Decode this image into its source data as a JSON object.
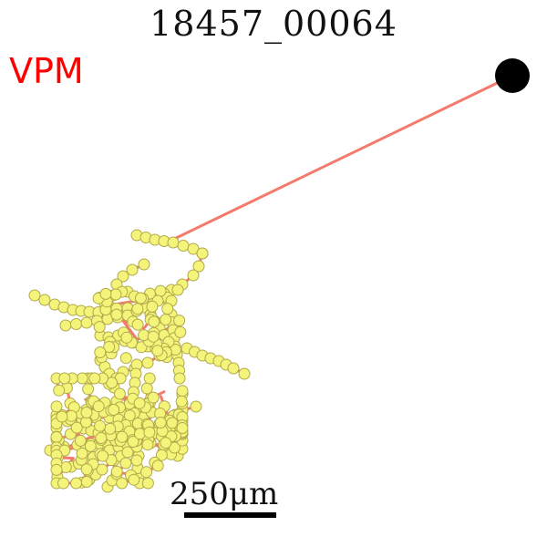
{
  "title": "18457_00064",
  "region_label": "VPM",
  "region_color": "#ff0000",
  "scale_bar": {
    "label": "250μm"
  },
  "colors": {
    "axon": "#f47a6c",
    "bouton_fill": "#f4f47a",
    "bouton_stroke": "#b0a94a",
    "soma": "#000000"
  }
}
